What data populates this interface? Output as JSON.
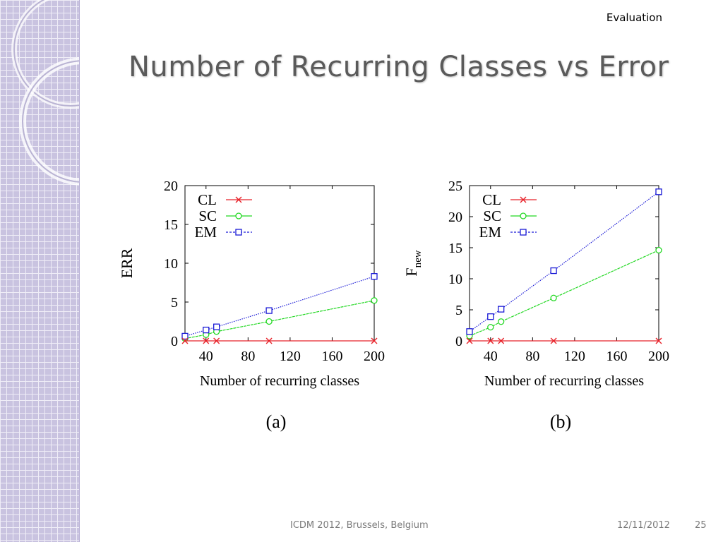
{
  "slide": {
    "section": "Evaluation",
    "title": "Number of Recurring Classes vs Error",
    "footer_venue": "ICDM 2012, Brussels, Belgium",
    "footer_date": "12/11/2012",
    "page_number": "25"
  },
  "colors": {
    "CL": "#e8232a",
    "SC": "#22d822",
    "EM": "#1a1ad6",
    "title": "#5a5a5a",
    "sidebar": "#c9c3e0"
  },
  "chart_data": [
    {
      "type": "line",
      "caption": "(a)",
      "xlabel": "Number of recurring classes",
      "ylabel": "ERR",
      "xlim": [
        20,
        200
      ],
      "ylim": [
        0,
        20
      ],
      "xticks": [
        40,
        80,
        120,
        160,
        200
      ],
      "yticks": [
        0,
        5,
        10,
        15,
        20
      ],
      "legend_position": "top-left",
      "grid": false,
      "x": [
        20,
        40,
        50,
        100,
        200
      ],
      "series": [
        {
          "name": "CL",
          "marker": "x",
          "values": [
            0,
            0,
            0,
            0,
            0
          ]
        },
        {
          "name": "SC",
          "marker": "circle",
          "values": [
            0.3,
            0.8,
            1.2,
            2.5,
            5.2
          ]
        },
        {
          "name": "EM",
          "marker": "square",
          "values": [
            0.6,
            1.4,
            1.8,
            3.9,
            8.3
          ]
        }
      ]
    },
    {
      "type": "line",
      "caption": "(b)",
      "xlabel": "Number of recurring classes",
      "ylabel": "F",
      "ylabel_subscript": "new",
      "xlim": [
        20,
        200
      ],
      "ylim": [
        0,
        25
      ],
      "xticks": [
        40,
        80,
        120,
        160,
        200
      ],
      "yticks": [
        0,
        5,
        10,
        15,
        20,
        25
      ],
      "legend_position": "top-left",
      "grid": false,
      "x": [
        20,
        40,
        50,
        100,
        200
      ],
      "series": [
        {
          "name": "CL",
          "marker": "x",
          "values": [
            0,
            0,
            0,
            0,
            0
          ]
        },
        {
          "name": "SC",
          "marker": "circle",
          "values": [
            0.8,
            2.2,
            3.1,
            6.9,
            14.6
          ]
        },
        {
          "name": "EM",
          "marker": "square",
          "values": [
            1.5,
            3.9,
            5.1,
            11.3,
            24.0
          ]
        }
      ]
    }
  ]
}
